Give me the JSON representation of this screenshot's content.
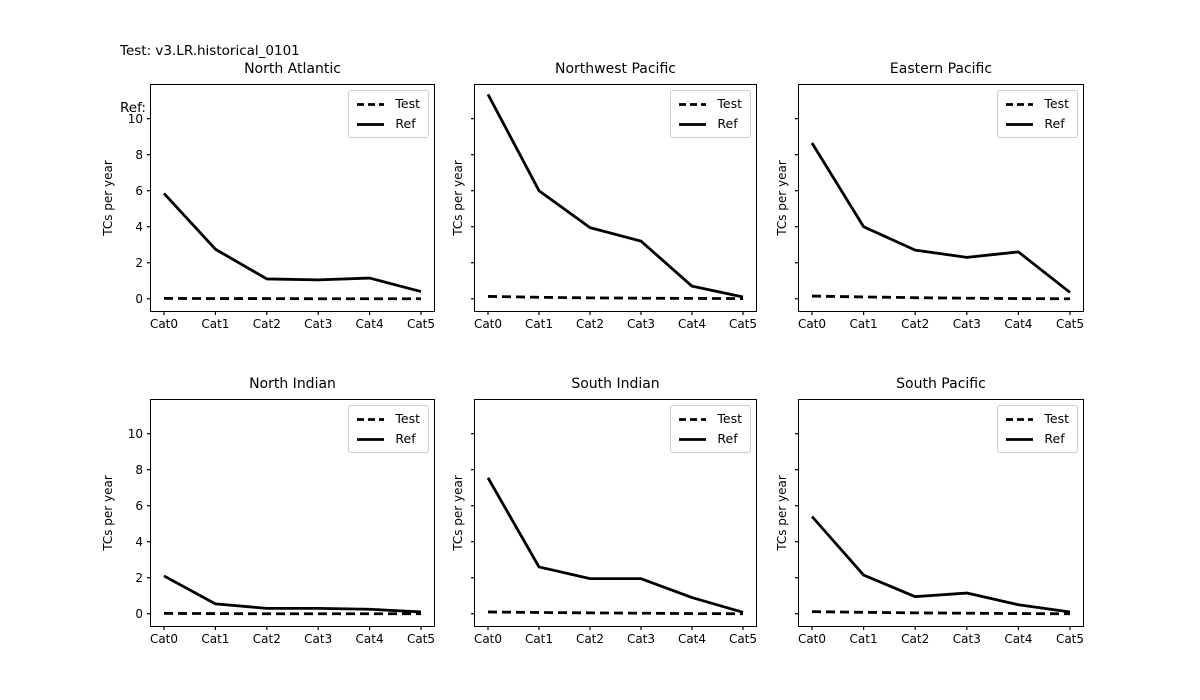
{
  "header": {
    "test_line": "Test: v3.LR.historical_0101",
    "ref_line": "Ref: Observation"
  },
  "legend": {
    "test": "Test",
    "ref": "Ref"
  },
  "colors": {
    "foreground": "#000000",
    "background": "#ffffff",
    "legend_border": "#cccccc"
  },
  "chart_data": [
    {
      "type": "line",
      "title": "North Atlantic",
      "xlabel": "",
      "ylabel": "TCs per year",
      "categories": [
        "Cat0",
        "Cat1",
        "Cat2",
        "Cat3",
        "Cat4",
        "Cat5"
      ],
      "series": [
        {
          "name": "Test",
          "style": "dashed",
          "values": [
            0.02,
            0.01,
            0.01,
            0.0,
            0.0,
            0.0
          ]
        },
        {
          "name": "Ref",
          "style": "solid",
          "values": [
            5.85,
            2.75,
            1.1,
            1.05,
            1.15,
            0.4
          ]
        }
      ],
      "yticks": [
        0,
        2,
        4,
        6,
        8,
        10
      ],
      "ytick_labels_shown": true,
      "ylim": [
        -0.68,
        11.87
      ],
      "legend_position": "upper-right",
      "grid": false
    },
    {
      "type": "line",
      "title": "Northwest Pacific",
      "xlabel": "",
      "ylabel": "TCs per year",
      "categories": [
        "Cat0",
        "Cat1",
        "Cat2",
        "Cat3",
        "Cat4",
        "Cat5"
      ],
      "series": [
        {
          "name": "Test",
          "style": "dashed",
          "values": [
            0.13,
            0.08,
            0.05,
            0.03,
            0.02,
            0.01
          ]
        },
        {
          "name": "Ref",
          "style": "solid",
          "values": [
            11.35,
            6.0,
            3.95,
            3.2,
            0.7,
            0.1
          ]
        }
      ],
      "yticks": [
        0,
        2,
        4,
        6,
        8,
        10
      ],
      "ytick_labels_shown": false,
      "ylim": [
        -0.68,
        11.87
      ],
      "legend_position": "upper-right",
      "grid": false
    },
    {
      "type": "line",
      "title": "Eastern Pacific",
      "xlabel": "",
      "ylabel": "TCs per year",
      "categories": [
        "Cat0",
        "Cat1",
        "Cat2",
        "Cat3",
        "Cat4",
        "Cat5"
      ],
      "series": [
        {
          "name": "Test",
          "style": "dashed",
          "values": [
            0.15,
            0.1,
            0.06,
            0.03,
            0.01,
            0.0
          ]
        },
        {
          "name": "Ref",
          "style": "solid",
          "values": [
            8.65,
            4.0,
            2.7,
            2.3,
            2.6,
            0.35
          ]
        }
      ],
      "yticks": [
        0,
        2,
        4,
        6,
        8,
        10
      ],
      "ytick_labels_shown": false,
      "ylim": [
        -0.68,
        11.87
      ],
      "legend_position": "upper-right",
      "grid": false
    },
    {
      "type": "line",
      "title": "North Indian",
      "xlabel": "",
      "ylabel": "TCs per year",
      "categories": [
        "Cat0",
        "Cat1",
        "Cat2",
        "Cat3",
        "Cat4",
        "Cat5"
      ],
      "series": [
        {
          "name": "Test",
          "style": "dashed",
          "values": [
            0.02,
            0.01,
            0.0,
            0.0,
            0.0,
            0.0
          ]
        },
        {
          "name": "Ref",
          "style": "solid",
          "values": [
            2.1,
            0.55,
            0.3,
            0.3,
            0.25,
            0.1
          ]
        }
      ],
      "yticks": [
        0,
        2,
        4,
        6,
        8,
        10
      ],
      "ytick_labels_shown": true,
      "ylim": [
        -0.68,
        11.87
      ],
      "legend_position": "upper-right",
      "grid": false
    },
    {
      "type": "line",
      "title": "South Indian",
      "xlabel": "",
      "ylabel": "TCs per year",
      "categories": [
        "Cat0",
        "Cat1",
        "Cat2",
        "Cat3",
        "Cat4",
        "Cat5"
      ],
      "series": [
        {
          "name": "Test",
          "style": "dashed",
          "values": [
            0.1,
            0.07,
            0.05,
            0.03,
            0.01,
            0.0
          ]
        },
        {
          "name": "Ref",
          "style": "solid",
          "values": [
            7.55,
            2.6,
            1.95,
            1.95,
            0.9,
            0.08
          ]
        }
      ],
      "yticks": [
        0,
        2,
        4,
        6,
        8,
        10
      ],
      "ytick_labels_shown": false,
      "ylim": [
        -0.68,
        11.87
      ],
      "legend_position": "upper-right",
      "grid": false
    },
    {
      "type": "line",
      "title": "South Pacific",
      "xlabel": "",
      "ylabel": "TCs per year",
      "categories": [
        "Cat0",
        "Cat1",
        "Cat2",
        "Cat3",
        "Cat4",
        "Cat5"
      ],
      "series": [
        {
          "name": "Test",
          "style": "dashed",
          "values": [
            0.12,
            0.08,
            0.05,
            0.03,
            0.01,
            0.0
          ]
        },
        {
          "name": "Ref",
          "style": "solid",
          "values": [
            5.4,
            2.15,
            0.95,
            1.15,
            0.5,
            0.1
          ]
        }
      ],
      "yticks": [
        0,
        2,
        4,
        6,
        8,
        10
      ],
      "ytick_labels_shown": false,
      "ylim": [
        -0.68,
        11.87
      ],
      "legend_position": "upper-right",
      "grid": false
    }
  ]
}
